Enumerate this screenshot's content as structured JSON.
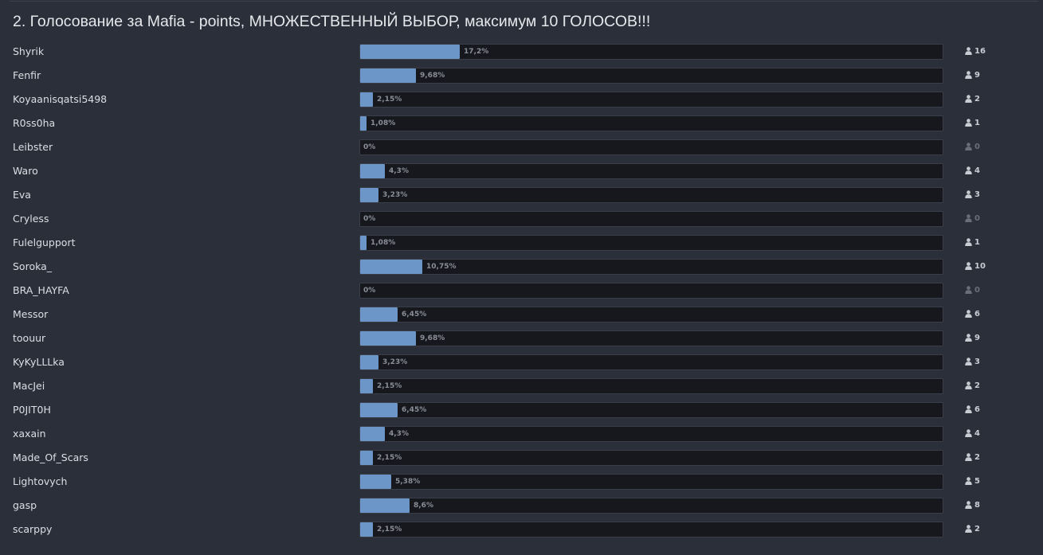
{
  "poll": {
    "title": "2. Голосование за Mafia - points, МНОЖЕСТВЕННЫЙ ВЫБОР, максимум 10 ГОЛОСОВ!!!",
    "vote_icon": "user-icon",
    "options": [
      {
        "label": "Shyrik",
        "percent_text": "17,2%",
        "percent": 17.2,
        "votes": "16"
      },
      {
        "label": "Fenfir",
        "percent_text": "9,68%",
        "percent": 9.68,
        "votes": "9"
      },
      {
        "label": "Koyaanisqatsi5498",
        "percent_text": "2,15%",
        "percent": 2.15,
        "votes": "2"
      },
      {
        "label": "R0ss0ha",
        "percent_text": "1,08%",
        "percent": 1.08,
        "votes": "1"
      },
      {
        "label": "Leibster",
        "percent_text": "0%",
        "percent": 0,
        "votes": "0"
      },
      {
        "label": "Waro",
        "percent_text": "4,3%",
        "percent": 4.3,
        "votes": "4"
      },
      {
        "label": "Eva",
        "percent_text": "3,23%",
        "percent": 3.23,
        "votes": "3"
      },
      {
        "label": "Cryless",
        "percent_text": "0%",
        "percent": 0,
        "votes": "0"
      },
      {
        "label": "Fulelgupport",
        "percent_text": "1,08%",
        "percent": 1.08,
        "votes": "1"
      },
      {
        "label": "Soroka_",
        "percent_text": "10,75%",
        "percent": 10.75,
        "votes": "10"
      },
      {
        "label": "BRA_HAYFA",
        "percent_text": "0%",
        "percent": 0,
        "votes": "0"
      },
      {
        "label": "Messor",
        "percent_text": "6,45%",
        "percent": 6.45,
        "votes": "6"
      },
      {
        "label": "toouur",
        "percent_text": "9,68%",
        "percent": 9.68,
        "votes": "9"
      },
      {
        "label": "KyKyLLLka",
        "percent_text": "3,23%",
        "percent": 3.23,
        "votes": "3"
      },
      {
        "label": "MacJei",
        "percent_text": "2,15%",
        "percent": 2.15,
        "votes": "2"
      },
      {
        "label": "P0JIT0H",
        "percent_text": "6,45%",
        "percent": 6.45,
        "votes": "6"
      },
      {
        "label": "xaxain",
        "percent_text": "4,3%",
        "percent": 4.3,
        "votes": "4"
      },
      {
        "label": "Made_Of_Scars",
        "percent_text": "2,15%",
        "percent": 2.15,
        "votes": "2"
      },
      {
        "label": "Lightovych",
        "percent_text": "5,38%",
        "percent": 5.38,
        "votes": "5"
      },
      {
        "label": "gasp",
        "percent_text": "8,6%",
        "percent": 8.6,
        "votes": "8"
      },
      {
        "label": "scarppy",
        "percent_text": "2,15%",
        "percent": 2.15,
        "votes": "2"
      }
    ]
  },
  "colors": {
    "background": "#2b2f3a",
    "bar_fill": "#6b96c7",
    "bar_track": "#17181d"
  }
}
